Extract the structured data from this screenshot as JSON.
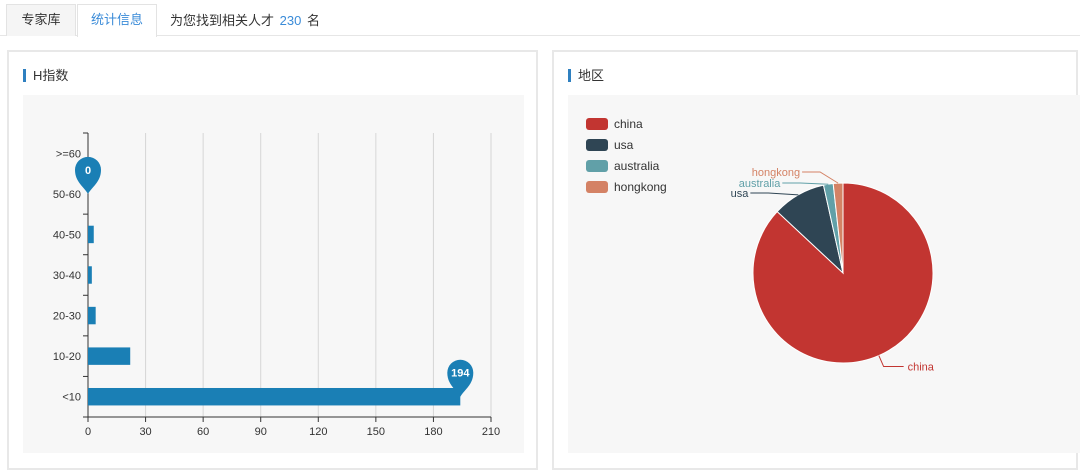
{
  "tabs": [
    {
      "label": "专家库",
      "active": false
    },
    {
      "label": "统计信息",
      "active": true
    }
  ],
  "result": {
    "prefix": "为您找到相关人才",
    "count": "230",
    "suffix": "名"
  },
  "h_index_panel": {
    "title": "H指数"
  },
  "region_panel": {
    "title": "地区"
  },
  "colors": {
    "accent": "#3a8bd8",
    "bar": "#1a7fb5",
    "china": "#c23531",
    "usa": "#2f4554",
    "australia": "#61a0a8",
    "hongkong": "#d48265"
  },
  "chart_data": [
    {
      "type": "bar",
      "orientation": "horizontal",
      "categories": [
        "<10",
        "10-20",
        "20-30",
        "30-40",
        "40-50",
        "50-60",
        ">=60"
      ],
      "values": [
        194,
        22,
        4,
        2,
        3,
        0,
        0
      ],
      "xticks": [
        "0",
        "30",
        "60",
        "90",
        "120",
        "150",
        "180",
        "210"
      ],
      "xlim": [
        0,
        210
      ],
      "markers": [
        {
          "category": "50-60",
          "value": 0,
          "label": "0"
        },
        {
          "category": "<10",
          "value": 194,
          "label": "194"
        }
      ],
      "grid": true
    },
    {
      "type": "pie",
      "labels": [
        "china",
        "usa",
        "australia",
        "hongkong"
      ],
      "values": [
        200,
        22,
        4,
        4
      ],
      "legend": "top-left",
      "legend_labels": [
        "china",
        "usa",
        "australia",
        "hongkong"
      ]
    }
  ]
}
